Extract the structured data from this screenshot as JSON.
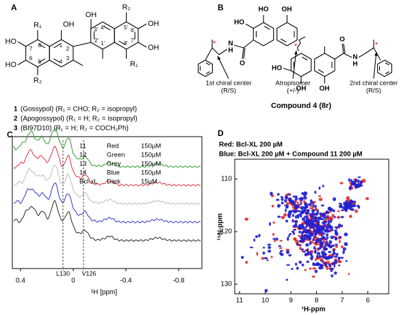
{
  "panel_a": {
    "label": "A",
    "atoms": [
      "R₁",
      "HO",
      "HO",
      "R₂",
      "OH",
      "8",
      "7",
      "6",
      "5",
      "1",
      "2",
      "3",
      "4",
      "3'",
      "4'",
      "2'",
      "1'",
      "5'",
      "6'",
      "7'",
      "8'",
      "OH",
      "R₂",
      "OH",
      "OH",
      "R₁"
    ],
    "compounds": [
      {
        "number": "1",
        "text": "(Gossypol) (R₁ = CHO; R₂ = isopropyl)"
      },
      {
        "number": "2",
        "text": "(Apogossypol) (R₁ = H; R₂ = isopropyl)"
      },
      {
        "number": "3",
        "text": "(BI97D10) (R₁ = H; R₂ = COCH₂Ph)"
      }
    ]
  },
  "panel_b": {
    "label": "B",
    "atoms": [
      "HO",
      "HO",
      "OH",
      "O",
      "N",
      "H",
      "HO",
      "OH",
      "OH",
      "O",
      "N",
      "H"
    ],
    "annotations": [
      "1st chiral center",
      "(R/S)",
      "Atropisomer",
      "(+/-)",
      "2nd chiral center",
      "(R/S)"
    ],
    "caption": "Compound 4 (8r)"
  },
  "panel_c": {
    "label": "C",
    "legend": [
      [
        "11",
        "Red",
        "150µM"
      ],
      [
        "12",
        "Green",
        "150µM"
      ],
      [
        "13",
        "Grey",
        "150µM"
      ],
      [
        "14",
        "Blue",
        "150µM"
      ],
      [
        "Bcl-xL",
        "Dark",
        "15µM"
      ]
    ],
    "residues": [
      "L130",
      "V126"
    ],
    "x_ticks": [
      "0.4",
      "0",
      "-0.4",
      "-0.8"
    ],
    "x_label": "¹H [ppm]"
  },
  "panel_d": {
    "label": "D",
    "legend": [
      "Red:  Bcl-XL  200 µM",
      "Blue:  Bcl-XL  200 µM + Compound 11  200 µM"
    ],
    "x_ticks": [
      11,
      10,
      9,
      8,
      7,
      6
    ],
    "y_ticks": [
      110,
      120,
      130
    ],
    "x_label": "¹H-ppm",
    "y_label": "¹⁵N-ppm"
  }
}
